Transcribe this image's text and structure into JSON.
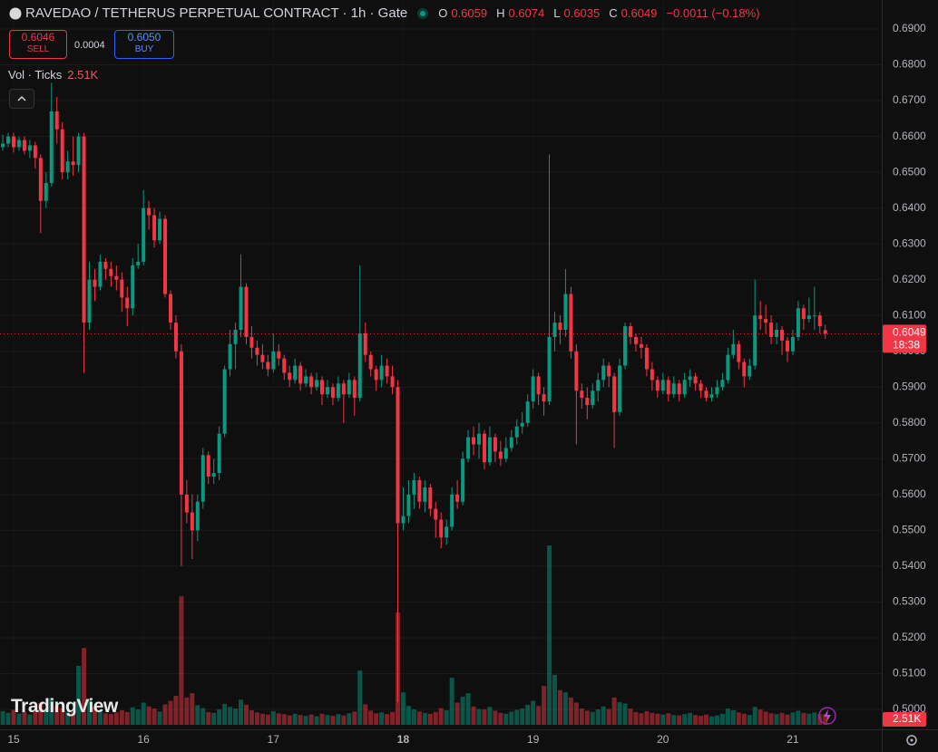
{
  "chart_data": {
    "type": "candlestick",
    "title": "RAVEDAO / TETHERUS PERPETUAL CONTRACT · 1h · Gate",
    "ohlc_labels": [
      "O",
      "H",
      "L",
      "C"
    ],
    "change": "−0.0011 (−0.18%)",
    "sell": "0.6046",
    "sell_label": "SELL",
    "buy": "0.6050",
    "buy_label": "BUY",
    "spread": "0.0004",
    "volume_title": "Vol · Ticks",
    "volume_label": "2.51K",
    "countdown": "18:38",
    "brand": "TradingView",
    "up_color": "#089981",
    "down_color": "#f23645",
    "ylim": [
      0.5,
      0.69
    ],
    "yticks": [
      {
        "value": 0.69,
        "label": "0.6900"
      },
      {
        "value": 0.68,
        "label": "0.6800"
      },
      {
        "value": 0.67,
        "label": "0.6700"
      },
      {
        "value": 0.66,
        "label": "0.6600"
      },
      {
        "value": 0.65,
        "label": "0.6500"
      },
      {
        "value": 0.64,
        "label": "0.6400"
      },
      {
        "value": 0.63,
        "label": "0.6300"
      },
      {
        "value": 0.62,
        "label": "0.6200"
      },
      {
        "value": 0.61,
        "label": "0.6100"
      },
      {
        "value": 0.6,
        "label": "0.6000"
      },
      {
        "value": 0.59,
        "label": "0.5900"
      },
      {
        "value": 0.58,
        "label": "0.5800"
      },
      {
        "value": 0.57,
        "label": "0.5700"
      },
      {
        "value": 0.56,
        "label": "0.5600"
      },
      {
        "value": 0.55,
        "label": "0.5500"
      },
      {
        "value": 0.54,
        "label": "0.5400"
      },
      {
        "value": 0.53,
        "label": "0.5300"
      },
      {
        "value": 0.52,
        "label": "0.5200"
      },
      {
        "value": 0.51,
        "label": "0.5100"
      },
      {
        "value": 0.5,
        "label": "0.5000"
      }
    ],
    "categories": [
      null,
      null,
      "15",
      null,
      null,
      null,
      null,
      null,
      null,
      null,
      null,
      null,
      null,
      null,
      null,
      null,
      null,
      null,
      null,
      null,
      null,
      null,
      null,
      null,
      null,
      null,
      "16",
      null,
      null,
      null,
      null,
      null,
      null,
      null,
      null,
      null,
      null,
      null,
      null,
      null,
      null,
      null,
      null,
      null,
      null,
      null,
      null,
      null,
      null,
      null,
      "17",
      null,
      null,
      null,
      null,
      null,
      null,
      null,
      null,
      null,
      null,
      null,
      null,
      null,
      null,
      null,
      null,
      null,
      null,
      null,
      null,
      null,
      null,
      null,
      "18",
      null,
      null,
      null,
      null,
      null,
      null,
      null,
      null,
      null,
      null,
      null,
      null,
      null,
      null,
      null,
      null,
      null,
      null,
      null,
      null,
      null,
      null,
      null,
      "19",
      null,
      null,
      null,
      null,
      null,
      null,
      null,
      null,
      null,
      null,
      null,
      null,
      null,
      null,
      null,
      null,
      null,
      null,
      null,
      null,
      null,
      null,
      null,
      "20",
      null,
      null,
      null,
      null,
      null,
      null,
      null,
      null,
      null,
      null,
      null,
      null,
      null,
      null,
      null,
      null,
      null,
      null,
      null,
      null,
      null,
      null,
      null,
      "21",
      null,
      null,
      null,
      null,
      null,
      null
    ],
    "ohlc": [
      [
        0.657,
        0.6605,
        0.656,
        0.658
      ],
      [
        0.658,
        0.661,
        0.657,
        0.66
      ],
      [
        0.66,
        0.661,
        0.6555,
        0.657
      ],
      [
        0.657,
        0.66,
        0.656,
        0.659
      ],
      [
        0.659,
        0.66,
        0.655,
        0.656
      ],
      [
        0.656,
        0.659,
        0.654,
        0.6575
      ],
      [
        0.6575,
        0.6585,
        0.651,
        0.654
      ],
      [
        0.654,
        0.655,
        0.633,
        0.642
      ],
      [
        0.642,
        0.65,
        0.64,
        0.647
      ],
      [
        0.647,
        0.675,
        0.646,
        0.667
      ],
      [
        0.667,
        0.671,
        0.658,
        0.662
      ],
      [
        0.662,
        0.664,
        0.648,
        0.65
      ],
      [
        0.65,
        0.656,
        0.648,
        0.653
      ],
      [
        0.653,
        0.66,
        0.649,
        0.652
      ],
      [
        0.652,
        0.661,
        0.65,
        0.66
      ],
      [
        0.66,
        0.661,
        0.594,
        0.608
      ],
      [
        0.608,
        0.625,
        0.606,
        0.62
      ],
      [
        0.62,
        0.623,
        0.614,
        0.618
      ],
      [
        0.618,
        0.627,
        0.617,
        0.625
      ],
      [
        0.625,
        0.626,
        0.62,
        0.623
      ],
      [
        0.623,
        0.625,
        0.618,
        0.621
      ],
      [
        0.621,
        0.624,
        0.617,
        0.62
      ],
      [
        0.62,
        0.622,
        0.611,
        0.615
      ],
      [
        0.615,
        0.618,
        0.607,
        0.612
      ],
      [
        0.612,
        0.626,
        0.61,
        0.624
      ],
      [
        0.624,
        0.63,
        0.623,
        0.625
      ],
      [
        0.625,
        0.645,
        0.624,
        0.64
      ],
      [
        0.64,
        0.642,
        0.634,
        0.638
      ],
      [
        0.638,
        0.64,
        0.629,
        0.631
      ],
      [
        0.631,
        0.639,
        0.63,
        0.637
      ],
      [
        0.637,
        0.638,
        0.615,
        0.616
      ],
      [
        0.616,
        0.617,
        0.606,
        0.608
      ],
      [
        0.608,
        0.61,
        0.598,
        0.6
      ],
      [
        0.6,
        0.602,
        0.54,
        0.56
      ],
      [
        0.56,
        0.564,
        0.552,
        0.555
      ],
      [
        0.555,
        0.56,
        0.542,
        0.55
      ],
      [
        0.55,
        0.56,
        0.547,
        0.558
      ],
      [
        0.558,
        0.573,
        0.556,
        0.571
      ],
      [
        0.571,
        0.572,
        0.563,
        0.565
      ],
      [
        0.565,
        0.57,
        0.563,
        0.566
      ],
      [
        0.566,
        0.579,
        0.564,
        0.577
      ],
      [
        0.577,
        0.596,
        0.576,
        0.595
      ],
      [
        0.595,
        0.606,
        0.593,
        0.602
      ],
      [
        0.602,
        0.608,
        0.595,
        0.606
      ],
      [
        0.606,
        0.627,
        0.604,
        0.618
      ],
      [
        0.618,
        0.619,
        0.602,
        0.604
      ],
      [
        0.604,
        0.607,
        0.598,
        0.601
      ],
      [
        0.601,
        0.603,
        0.596,
        0.599
      ],
      [
        0.599,
        0.602,
        0.595,
        0.597
      ],
      [
        0.597,
        0.599,
        0.593,
        0.595
      ],
      [
        0.595,
        0.605,
        0.594,
        0.6
      ],
      [
        0.6,
        0.602,
        0.596,
        0.598
      ],
      [
        0.598,
        0.599,
        0.592,
        0.594
      ],
      [
        0.594,
        0.596,
        0.59,
        0.592
      ],
      [
        0.592,
        0.598,
        0.591,
        0.596
      ],
      [
        0.596,
        0.597,
        0.589,
        0.591
      ],
      [
        0.591,
        0.595,
        0.59,
        0.593
      ],
      [
        0.593,
        0.594,
        0.588,
        0.59
      ],
      [
        0.59,
        0.594,
        0.589,
        0.592
      ],
      [
        0.592,
        0.593,
        0.585,
        0.588
      ],
      [
        0.588,
        0.592,
        0.587,
        0.59
      ],
      [
        0.59,
        0.591,
        0.585,
        0.587
      ],
      [
        0.587,
        0.593,
        0.586,
        0.591
      ],
      [
        0.591,
        0.592,
        0.58,
        0.588
      ],
      [
        0.588,
        0.594,
        0.587,
        0.592
      ],
      [
        0.592,
        0.593,
        0.582,
        0.587
      ],
      [
        0.587,
        0.624,
        0.586,
        0.605
      ],
      [
        0.605,
        0.608,
        0.597,
        0.599
      ],
      [
        0.599,
        0.6,
        0.593,
        0.595
      ],
      [
        0.595,
        0.596,
        0.589,
        0.592
      ],
      [
        0.592,
        0.599,
        0.59,
        0.596
      ],
      [
        0.596,
        0.598,
        0.591,
        0.593
      ],
      [
        0.593,
        0.596,
        0.588,
        0.59
      ],
      [
        0.59,
        0.592,
        0.502,
        0.552
      ],
      [
        0.552,
        0.562,
        0.55,
        0.554
      ],
      [
        0.554,
        0.564,
        0.552,
        0.56
      ],
      [
        0.56,
        0.566,
        0.556,
        0.564
      ],
      [
        0.564,
        0.565,
        0.556,
        0.558
      ],
      [
        0.558,
        0.564,
        0.555,
        0.562
      ],
      [
        0.562,
        0.563,
        0.554,
        0.556
      ],
      [
        0.556,
        0.558,
        0.548,
        0.553
      ],
      [
        0.553,
        0.555,
        0.545,
        0.548
      ],
      [
        0.548,
        0.553,
        0.546,
        0.551
      ],
      [
        0.551,
        0.562,
        0.55,
        0.56
      ],
      [
        0.56,
        0.564,
        0.556,
        0.558
      ],
      [
        0.558,
        0.572,
        0.557,
        0.57
      ],
      [
        0.57,
        0.578,
        0.569,
        0.576
      ],
      [
        0.576,
        0.579,
        0.571,
        0.574
      ],
      [
        0.574,
        0.58,
        0.57,
        0.577
      ],
      [
        0.577,
        0.578,
        0.567,
        0.569
      ],
      [
        0.569,
        0.579,
        0.568,
        0.576
      ],
      [
        0.576,
        0.577,
        0.569,
        0.572
      ],
      [
        0.572,
        0.575,
        0.568,
        0.57
      ],
      [
        0.57,
        0.576,
        0.569,
        0.573
      ],
      [
        0.573,
        0.578,
        0.572,
        0.576
      ],
      [
        0.576,
        0.581,
        0.574,
        0.579
      ],
      [
        0.579,
        0.583,
        0.577,
        0.58
      ],
      [
        0.58,
        0.588,
        0.579,
        0.586
      ],
      [
        0.586,
        0.595,
        0.584,
        0.593
      ],
      [
        0.593,
        0.594,
        0.585,
        0.588
      ],
      [
        0.588,
        0.59,
        0.582,
        0.586
      ],
      [
        0.586,
        0.655,
        0.585,
        0.604
      ],
      [
        0.604,
        0.611,
        0.6,
        0.608
      ],
      [
        0.608,
        0.61,
        0.602,
        0.606
      ],
      [
        0.606,
        0.623,
        0.604,
        0.616
      ],
      [
        0.616,
        0.618,
        0.598,
        0.6
      ],
      [
        0.6,
        0.602,
        0.574,
        0.589
      ],
      [
        0.589,
        0.591,
        0.584,
        0.587
      ],
      [
        0.587,
        0.59,
        0.581,
        0.585
      ],
      [
        0.585,
        0.591,
        0.584,
        0.589
      ],
      [
        0.589,
        0.594,
        0.586,
        0.592
      ],
      [
        0.592,
        0.598,
        0.59,
        0.596
      ],
      [
        0.596,
        0.597,
        0.59,
        0.593
      ],
      [
        0.593,
        0.594,
        0.573,
        0.583
      ],
      [
        0.583,
        0.598,
        0.582,
        0.596
      ],
      [
        0.596,
        0.608,
        0.595,
        0.607
      ],
      [
        0.607,
        0.608,
        0.602,
        0.604
      ],
      [
        0.604,
        0.605,
        0.6,
        0.602
      ],
      [
        0.602,
        0.604,
        0.598,
        0.601
      ],
      [
        0.601,
        0.602,
        0.593,
        0.595
      ],
      [
        0.595,
        0.597,
        0.589,
        0.592
      ],
      [
        0.592,
        0.593,
        0.587,
        0.589
      ],
      [
        0.589,
        0.594,
        0.588,
        0.592
      ],
      [
        0.592,
        0.593,
        0.586,
        0.588
      ],
      [
        0.588,
        0.593,
        0.587,
        0.591
      ],
      [
        0.591,
        0.592,
        0.586,
        0.588
      ],
      [
        0.588,
        0.594,
        0.587,
        0.592
      ],
      [
        0.592,
        0.595,
        0.59,
        0.593
      ],
      [
        0.593,
        0.594,
        0.589,
        0.591
      ],
      [
        0.591,
        0.592,
        0.587,
        0.589
      ],
      [
        0.589,
        0.59,
        0.586,
        0.587
      ],
      [
        0.587,
        0.59,
        0.586,
        0.588
      ],
      [
        0.588,
        0.592,
        0.587,
        0.59
      ],
      [
        0.59,
        0.594,
        0.589,
        0.592
      ],
      [
        0.592,
        0.601,
        0.591,
        0.599
      ],
      [
        0.599,
        0.606,
        0.598,
        0.602
      ],
      [
        0.602,
        0.603,
        0.595,
        0.597
      ],
      [
        0.597,
        0.598,
        0.59,
        0.593
      ],
      [
        0.593,
        0.598,
        0.592,
        0.596
      ],
      [
        0.596,
        0.62,
        0.595,
        0.61
      ],
      [
        0.61,
        0.614,
        0.606,
        0.609
      ],
      [
        0.609,
        0.613,
        0.605,
        0.608
      ],
      [
        0.608,
        0.61,
        0.602,
        0.604
      ],
      [
        0.604,
        0.608,
        0.602,
        0.606
      ],
      [
        0.606,
        0.607,
        0.599,
        0.603
      ],
      [
        0.603,
        0.604,
        0.597,
        0.6
      ],
      [
        0.6,
        0.606,
        0.599,
        0.604
      ],
      [
        0.604,
        0.614,
        0.603,
        0.612
      ],
      [
        0.612,
        0.613,
        0.606,
        0.609
      ],
      [
        0.609,
        0.615,
        0.608,
        0.61
      ],
      [
        0.61,
        0.618,
        0.606,
        0.61
      ],
      [
        0.61,
        0.611,
        0.605,
        0.607
      ],
      [
        0.6059,
        0.6074,
        0.6035,
        0.6049
      ]
    ],
    "volume": [
      3200,
      2800,
      3500,
      2600,
      3000,
      2400,
      3300,
      5100,
      3800,
      6200,
      4400,
      3900,
      3100,
      2900,
      13800,
      18000,
      6000,
      4200,
      3300,
      2700,
      2500,
      2900,
      3400,
      3000,
      4100,
      3600,
      5200,
      4300,
      3800,
      3100,
      4800,
      5600,
      6800,
      30100,
      6400,
      7400,
      4600,
      3900,
      3000,
      2800,
      3600,
      4900,
      4200,
      3800,
      5900,
      4700,
      3400,
      2900,
      2600,
      2400,
      3200,
      2700,
      2500,
      2200,
      2600,
      2300,
      2100,
      2400,
      2000,
      2600,
      2300,
      2100,
      2500,
      2200,
      2700,
      3100,
      12700,
      4800,
      3300,
      2700,
      2900,
      2500,
      3000,
      26300,
      7600,
      4400,
      3600,
      3100,
      2800,
      2600,
      3000,
      3900,
      3400,
      11000,
      5200,
      6600,
      7400,
      4300,
      3700,
      3600,
      4200,
      3300,
      2800,
      2600,
      3100,
      3500,
      3800,
      4700,
      5600,
      4400,
      9100,
      42000,
      11700,
      8100,
      7600,
      6400,
      5200,
      3800,
      3300,
      3000,
      3600,
      4300,
      3700,
      6400,
      5300,
      5000,
      3800,
      3000,
      2700,
      3200,
      2800,
      2600,
      2400,
      2700,
      2300,
      2200,
      2500,
      2800,
      2300,
      2100,
      2400,
      2000,
      2200,
      2600,
      3800,
      3400,
      2900,
      2600,
      2300,
      4200,
      3600,
      3100,
      2700,
      2500,
      2800,
      2400,
      2900,
      3300,
      2800,
      2600,
      2900,
      2500,
      2510
    ]
  }
}
